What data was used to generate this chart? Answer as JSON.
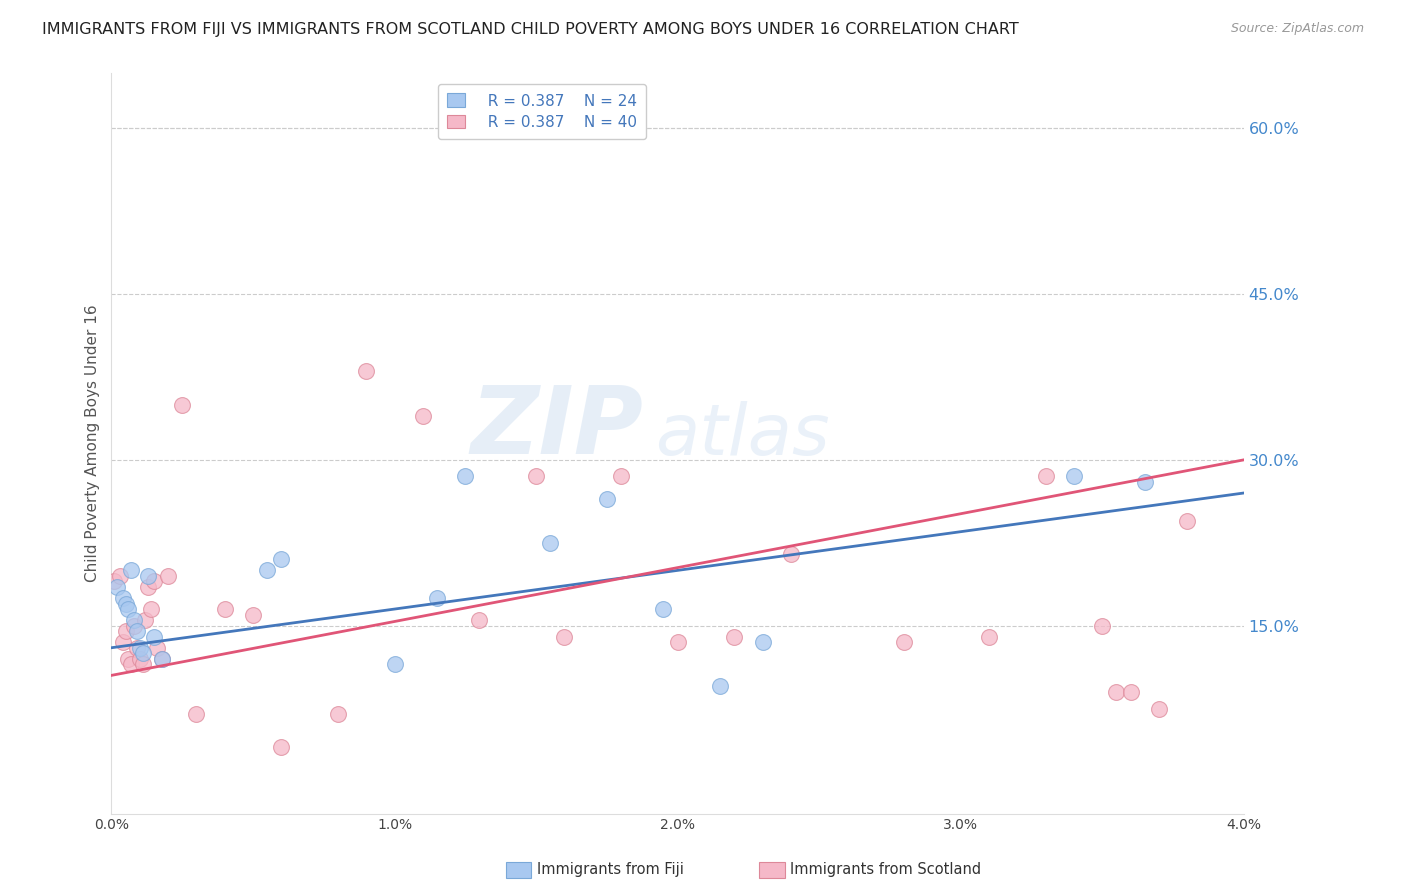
{
  "title": "IMMIGRANTS FROM FIJI VS IMMIGRANTS FROM SCOTLAND CHILD POVERTY AMONG BOYS UNDER 16 CORRELATION CHART",
  "source": "Source: ZipAtlas.com",
  "ylabel": "Child Poverty Among Boys Under 16",
  "xlim": [
    0.0,
    0.04
  ],
  "ylim": [
    -0.02,
    0.65
  ],
  "right_yticks": [
    0.15,
    0.3,
    0.45,
    0.6
  ],
  "right_yticklabels": [
    "15.0%",
    "30.0%",
    "45.0%",
    "60.0%"
  ],
  "xticks": [
    0.0,
    0.01,
    0.02,
    0.03,
    0.04
  ],
  "xticklabels": [
    "0.0%",
    "1.0%",
    "2.0%",
    "3.0%",
    "4.0%"
  ],
  "fiji_color": "#a8c8f0",
  "fiji_edge_color": "#7aa8d8",
  "fiji_line_color": "#4477bb",
  "scotland_color": "#f5b8c8",
  "scotland_edge_color": "#dd8899",
  "scotland_line_color": "#e05577",
  "legend_r_fiji": "R = 0.387",
  "legend_n_fiji": "N = 24",
  "legend_r_scotland": "R = 0.387",
  "legend_n_scotland": "N = 40",
  "fiji_x": [
    0.0002,
    0.0004,
    0.0005,
    0.0006,
    0.0007,
    0.0008,
    0.0009,
    0.001,
    0.0011,
    0.0013,
    0.0015,
    0.0018,
    0.0055,
    0.006,
    0.01,
    0.0115,
    0.0125,
    0.0155,
    0.0175,
    0.0195,
    0.0215,
    0.023,
    0.034,
    0.0365
  ],
  "fiji_y": [
    0.185,
    0.175,
    0.17,
    0.165,
    0.2,
    0.155,
    0.145,
    0.13,
    0.125,
    0.195,
    0.14,
    0.12,
    0.2,
    0.21,
    0.115,
    0.175,
    0.285,
    0.225,
    0.265,
    0.165,
    0.095,
    0.135,
    0.285,
    0.28
  ],
  "scotland_x": [
    0.0001,
    0.0003,
    0.0004,
    0.0005,
    0.0006,
    0.0007,
    0.0008,
    0.0009,
    0.001,
    0.0011,
    0.0012,
    0.0013,
    0.0014,
    0.0015,
    0.0016,
    0.0018,
    0.002,
    0.0025,
    0.003,
    0.004,
    0.005,
    0.006,
    0.008,
    0.009,
    0.011,
    0.013,
    0.015,
    0.016,
    0.018,
    0.02,
    0.022,
    0.024,
    0.028,
    0.031,
    0.033,
    0.035,
    0.0355,
    0.036,
    0.037,
    0.038
  ],
  "scotland_y": [
    0.19,
    0.195,
    0.135,
    0.145,
    0.12,
    0.115,
    0.15,
    0.13,
    0.12,
    0.115,
    0.155,
    0.185,
    0.165,
    0.19,
    0.13,
    0.12,
    0.195,
    0.35,
    0.07,
    0.165,
    0.16,
    0.04,
    0.07,
    0.38,
    0.34,
    0.155,
    0.285,
    0.14,
    0.285,
    0.135,
    0.14,
    0.215,
    0.135,
    0.14,
    0.285,
    0.15,
    0.09,
    0.09,
    0.075,
    0.245
  ],
  "fiji_trend_x": [
    0.0,
    0.04
  ],
  "fiji_trend_y": [
    0.13,
    0.27
  ],
  "scotland_trend_x": [
    0.0,
    0.04
  ],
  "scotland_trend_y": [
    0.105,
    0.3
  ],
  "watermark_zip": "ZIP",
  "watermark_atlas": "atlas",
  "title_color": "#222222",
  "axis_label_color": "#555555",
  "right_tick_color": "#4488cc",
  "grid_color": "#cccccc",
  "background_color": "#ffffff",
  "title_fontsize": 11.5,
  "ylabel_fontsize": 11,
  "tick_fontsize": 10,
  "legend_fontsize": 11,
  "marker_size": 130
}
